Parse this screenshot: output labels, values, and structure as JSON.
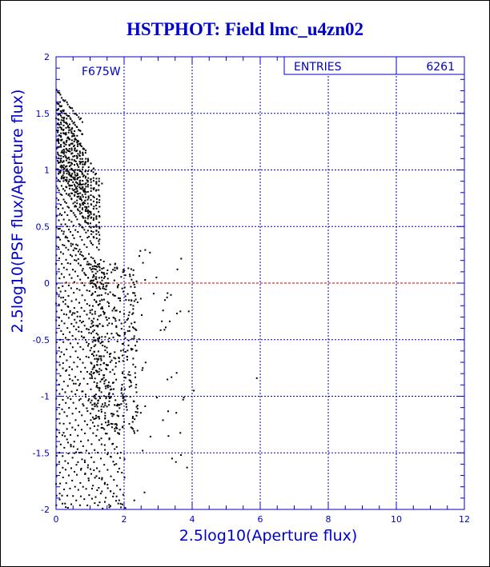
{
  "chart_data": {
    "type": "scatter",
    "title": "HSTPHOT: Field lmc_u4zn02",
    "xlabel": "2.5log10(Aperture flux)",
    "ylabel": "2.5log10(PSF flux/Aperture flux)",
    "xlim": [
      0,
      12
    ],
    "ylim": [
      -2,
      2
    ],
    "x_ticks": [
      "0",
      "2",
      "4",
      "6",
      "8",
      "10",
      "12"
    ],
    "y_ticks": [
      "-2",
      "-1.5",
      "-1",
      "-0.5",
      "0",
      "0.5",
      "1",
      "1.5",
      "2"
    ],
    "grid": true,
    "reference_line_y": 0,
    "filter_label": "F675W",
    "stats_box": {
      "label": "ENTRIES",
      "value": "6261"
    },
    "density_description": "Dense diagonal streaks from x=0 to x≈2.2 spanning y from -2 to 1.7; sparse scatter out to x≈4; isolated point near x=5.9, y=-0.84"
  },
  "colors": {
    "axes": "#0000cc",
    "grid": "#0000cc",
    "points": "#000000",
    "reference_line": "#cc0000"
  }
}
